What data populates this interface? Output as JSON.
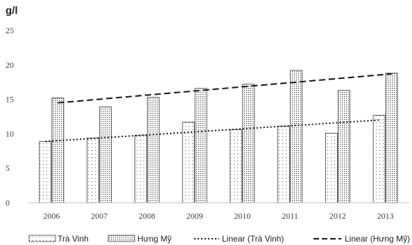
{
  "chart_data": {
    "type": "bar",
    "title": "",
    "unit_label": "g/l",
    "xlabel": "",
    "ylabel": "",
    "categories": [
      "2006",
      "2007",
      "2008",
      "2009",
      "2010",
      "2011",
      "2012",
      "2013"
    ],
    "ylim": [
      0,
      25
    ],
    "yticks": [
      "0",
      "5",
      "10",
      "15",
      "20",
      "25"
    ],
    "grid": false,
    "legend_position": "bottom",
    "series": [
      {
        "name": "Trà Vinh",
        "values": [
          8.9,
          9.4,
          9.8,
          11.7,
          10.6,
          11.1,
          10.1,
          12.7
        ],
        "pattern": "sparse-dots"
      },
      {
        "name": "Hưng Mỹ",
        "values": [
          15.2,
          13.9,
          15.3,
          16.6,
          17.2,
          19.2,
          16.3,
          18.8
        ],
        "pattern": "dense-dots"
      }
    ],
    "trendlines": [
      {
        "name": "Linear (Trà Vinh)",
        "series": "Trà Vinh",
        "start": 8.9,
        "end": 12.0,
        "style": "dotted"
      },
      {
        "name": "Linear (Hưng Mỹ)",
        "series": "Hưng Mỹ",
        "start": 14.5,
        "end": 18.7,
        "style": "dashed"
      }
    ]
  }
}
